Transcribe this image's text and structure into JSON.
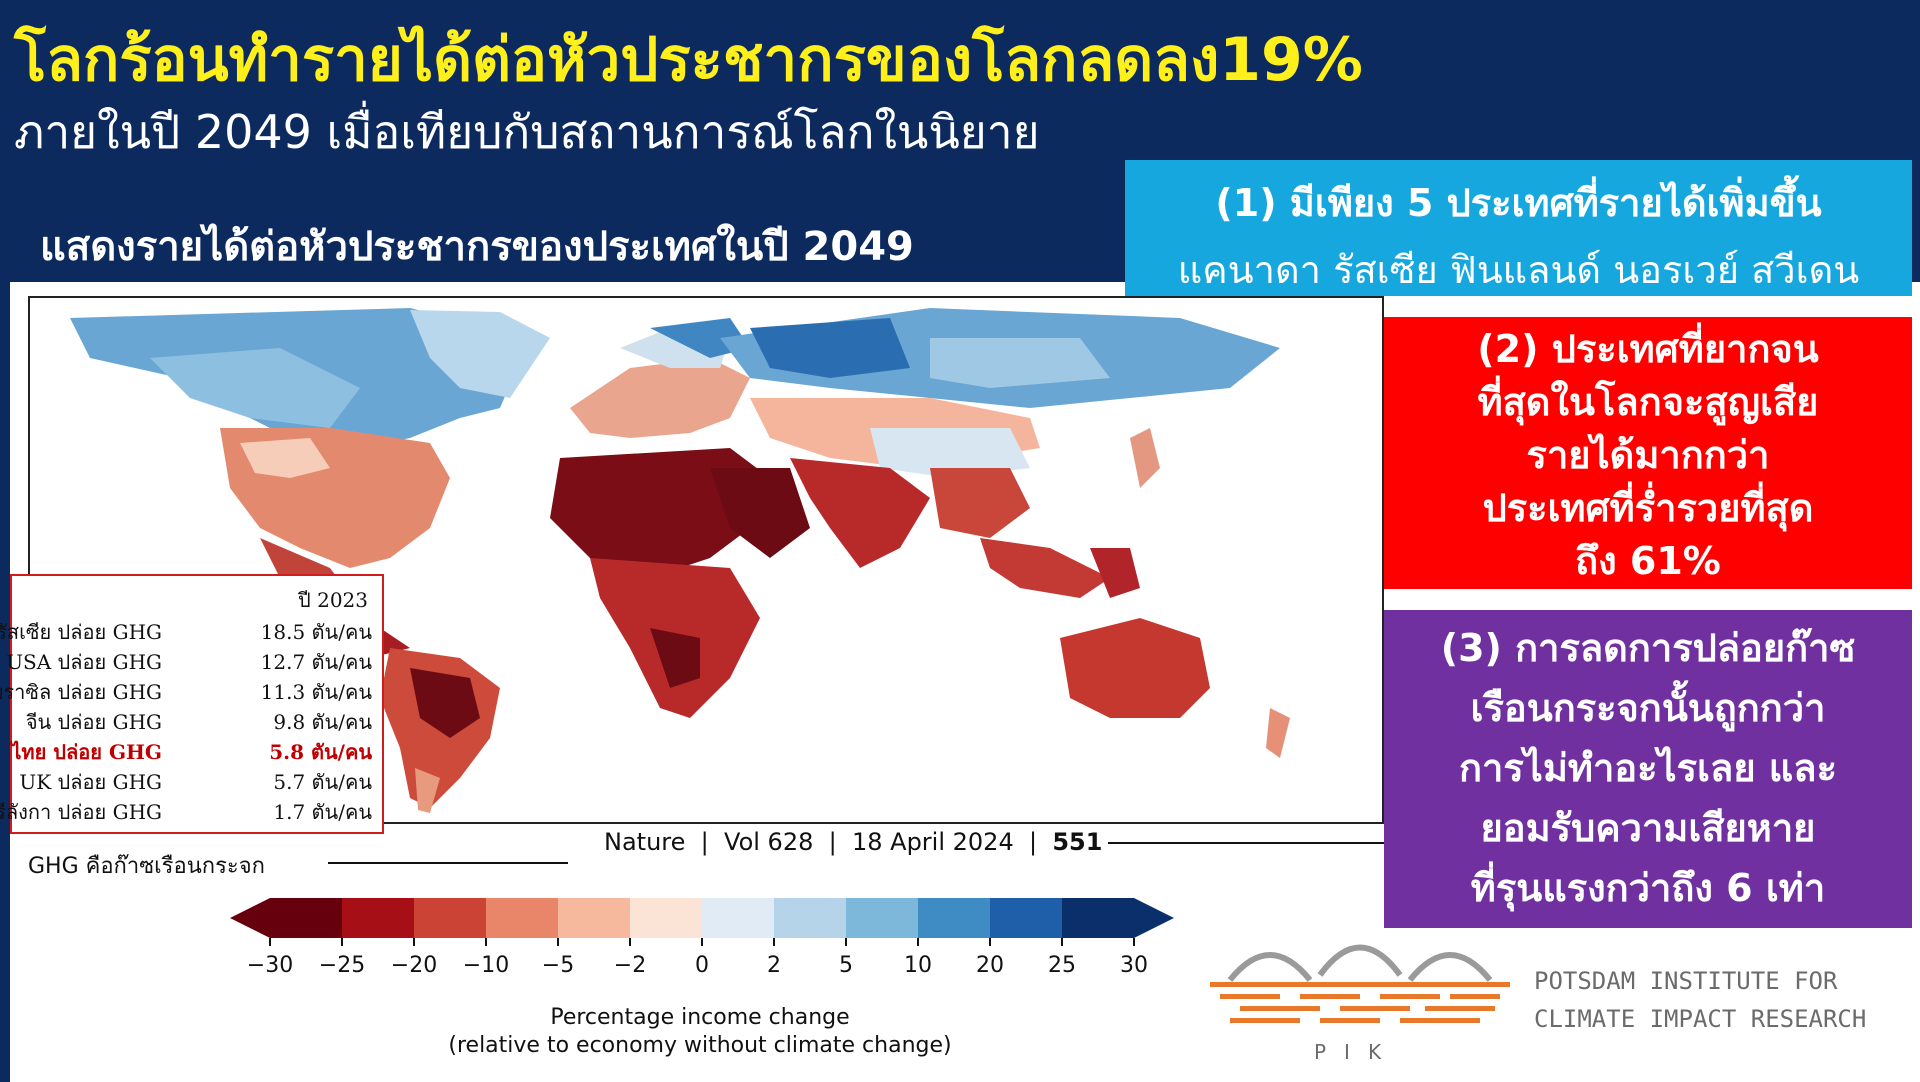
{
  "header": {
    "title": "โลกร้อนทำรายได้ต่อหัวประชากรของโลกลดลง19%",
    "subtitle": "ภายในปี 2049 เมื่อเทียบกับสถานการณ์โลกในนิยาย",
    "map_heading": "แสดงรายได้ต่อหัวประชากรของประเทศในปี 2049"
  },
  "callouts": {
    "box1": {
      "line1": "(1) มีเพียง 5 ประเทศที่รายได้เพิ่มขึ้น",
      "line2": "แคนาดา รัสเซีย ฟินแลนด์ นอรเวย์  สวีเดน",
      "color": "#17a7df"
    },
    "box2": {
      "lines": [
        "(2) ประเทศที่ยากจน",
        "ที่สุดในโลกจะสูญเสีย",
        "รายได้มากกว่า",
        "ประเทศที่ร่ำรวยที่สุด",
        "ถึง 61%"
      ],
      "color": "#ff0000"
    },
    "box3": {
      "lines": [
        "(3) การลดการปล่อยก๊าซ",
        "เรือนกระจกนั้นถูกกว่า",
        "การไม่ทำอะไรเลย และ",
        "ยอมรับความเสียหาย",
        "ที่รุนแรงกว่าถึง 6 เท่า"
      ],
      "color": "#7030a0"
    }
  },
  "emissions": {
    "year": "ปี 2023",
    "rows": [
      {
        "name": "รัสเซีย ปล่อย GHG",
        "value": "18.5 ตัน/คน",
        "highlight": false
      },
      {
        "name": "USA ปล่อย GHG",
        "value": "12.7 ตัน/คน",
        "highlight": false
      },
      {
        "name": "บราซิล ปล่อย GHG",
        "value": "11.3 ตัน/คน",
        "highlight": false
      },
      {
        "name": "จีน   ปล่อย GHG",
        "value": "9.8 ตัน/คน",
        "highlight": false
      },
      {
        "name": "ไทย ปล่อย GHG",
        "value": "5.8 ตัน/คน",
        "highlight": true
      },
      {
        "name": "UK  ปล่อย GHG",
        "value": "5.7 ตัน/คน",
        "highlight": false
      },
      {
        "name": "ศรีลังกา ปล่อย GHG",
        "value": "1.7 ตัน/คน",
        "highlight": false
      }
    ],
    "note": "GHG คือก๊าซเรือนกระจก"
  },
  "citation": {
    "journal": "Nature",
    "volume": "Vol 628",
    "date": "18 April 2024",
    "page": "551"
  },
  "colorbar": {
    "ticks": [
      "−30",
      "−25",
      "−20",
      "−10",
      "−5",
      "−2",
      "0",
      "2",
      "5",
      "10",
      "20",
      "25",
      "30"
    ],
    "colors": [
      "#67000d",
      "#a50f15",
      "#cb4335",
      "#e9866a",
      "#f6b99e",
      "#fbe3d6",
      "#e0ebf5",
      "#b6d4e9",
      "#7db7da",
      "#3f8cc5",
      "#1f5ea8",
      "#0a2f6b"
    ],
    "label_line1": "Percentage income change",
    "label_line2": "(relative to economy without climate change)"
  },
  "logo": {
    "line1": "POTSDAM INSTITUTE FOR",
    "line2": "CLIMATE IMPACT RESEARCH",
    "abbr": "PIK",
    "color": "#e8782a"
  }
}
